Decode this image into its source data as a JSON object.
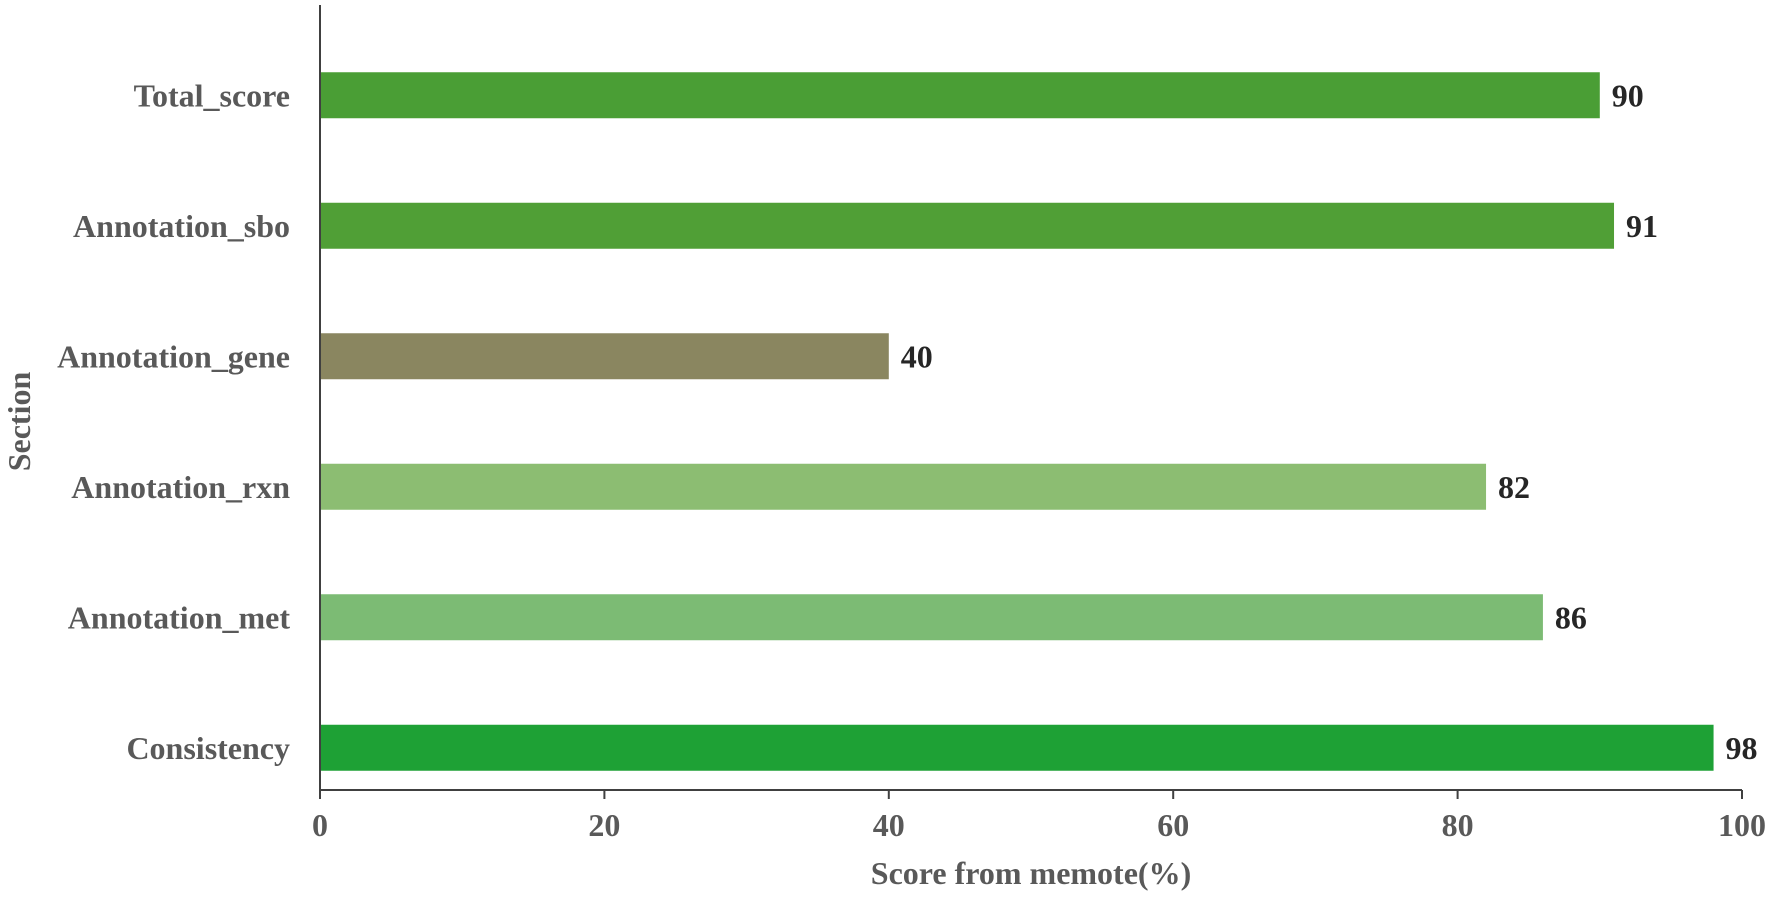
{
  "chart_data": {
    "type": "bar",
    "orientation": "horizontal",
    "categories": [
      "Total_score",
      "Annotation_sbo",
      "Annotation_gene",
      "Annotation_rxn",
      "Annotation_met",
      "Consistency"
    ],
    "values": [
      90,
      91,
      40,
      82,
      86,
      98
    ],
    "data_labels": [
      "90",
      "91",
      "40",
      "82",
      "86",
      "98"
    ],
    "colors": [
      "#4a9e35",
      "#509f36",
      "#8a8660",
      "#8cbd72",
      "#7cbb74",
      "#1ea135"
    ],
    "xlabel": "Score from memote(%)",
    "ylabel": "Section",
    "xlim": [
      0,
      100
    ],
    "xticks": [
      0,
      20,
      40,
      60,
      80,
      100
    ],
    "grid": false,
    "legend": "none"
  }
}
